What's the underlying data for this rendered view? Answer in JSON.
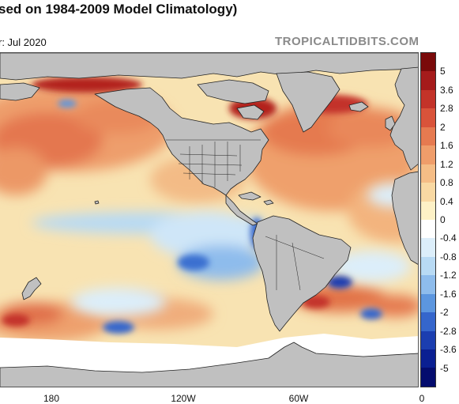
{
  "header": {
    "title": "sed on 1984-2009 Model Climatology)",
    "subtitle": "r: Jul 2020",
    "brand": "TROPICALTIDBITS.COM"
  },
  "map": {
    "longitude_labels": [
      "180",
      "120W",
      "60W",
      "0"
    ],
    "land_color": "#c0c0c0",
    "ocean_background": "#f7e7b8"
  },
  "colorbar": {
    "labels": [
      "5",
      "3.6",
      "2.8",
      "2",
      "1.6",
      "1.2",
      "0.8",
      "0.4",
      "0",
      "-0.4",
      "-0.8",
      "-1.2",
      "-1.6",
      "-2",
      "-2.8",
      "-3.6",
      "-5"
    ],
    "colors": [
      "#7a0a0a",
      "#a51b1b",
      "#c33329",
      "#d9533a",
      "#e67a50",
      "#ef9d6a",
      "#f5bd86",
      "#f9d9a3",
      "#fdf1c6",
      "#ffffff",
      "#dceefa",
      "#b8daf4",
      "#8ebcec",
      "#5c96df",
      "#3566cc",
      "#1b3eb0",
      "#0a1f92",
      "#040c6e"
    ]
  }
}
